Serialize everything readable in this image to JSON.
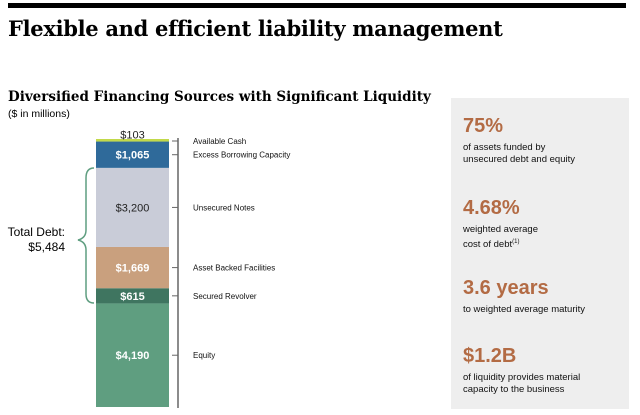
{
  "header": {
    "title": "Flexible and efficient liability management"
  },
  "chart_section": {
    "title": "Diversified Financing Sources with Significant Liquidity",
    "units": "($ in millions)",
    "total_debt_label": "Total Debt:",
    "total_debt_value": "$5,484"
  },
  "chart_data": {
    "type": "bar",
    "stacked": true,
    "title": "Diversified Financing Sources with Significant Liquidity",
    "ylabel": "($ in millions)",
    "segments": [
      {
        "name": "Equity",
        "value": 4190,
        "label": "$4,190",
        "color": "#5f9e80"
      },
      {
        "name": "Secured Revolver",
        "value": 615,
        "label": "$615",
        "color": "#3f7560"
      },
      {
        "name": "Asset Backed Facilities",
        "value": 1669,
        "label": "$1,669",
        "color": "#c9a07e"
      },
      {
        "name": "Unsecured Notes",
        "value": 3200,
        "label": "$3,200",
        "color": "#c9ccd8"
      },
      {
        "name": "Excess Borrowing Capacity",
        "value": 1065,
        "label": "$1,065",
        "color": "#2f6a9a"
      },
      {
        "name": "Available Cash",
        "value": 103,
        "label": "$103",
        "color": "#c2d94a"
      }
    ]
  },
  "kpis": [
    {
      "value": "75%",
      "desc_line1": "of assets funded by",
      "desc_line2": "unsecured debt and equity"
    },
    {
      "value": "4.68%",
      "desc_line1": "weighted average",
      "desc_line2": "cost of debt",
      "superscript": "(1)"
    },
    {
      "value": "3.6 years",
      "desc_line1": "to weighted average maturity",
      "desc_line2": ""
    },
    {
      "value": "$1.2B",
      "desc_line1": "of liquidity provides material",
      "desc_line2": "capacity to the business"
    }
  ]
}
